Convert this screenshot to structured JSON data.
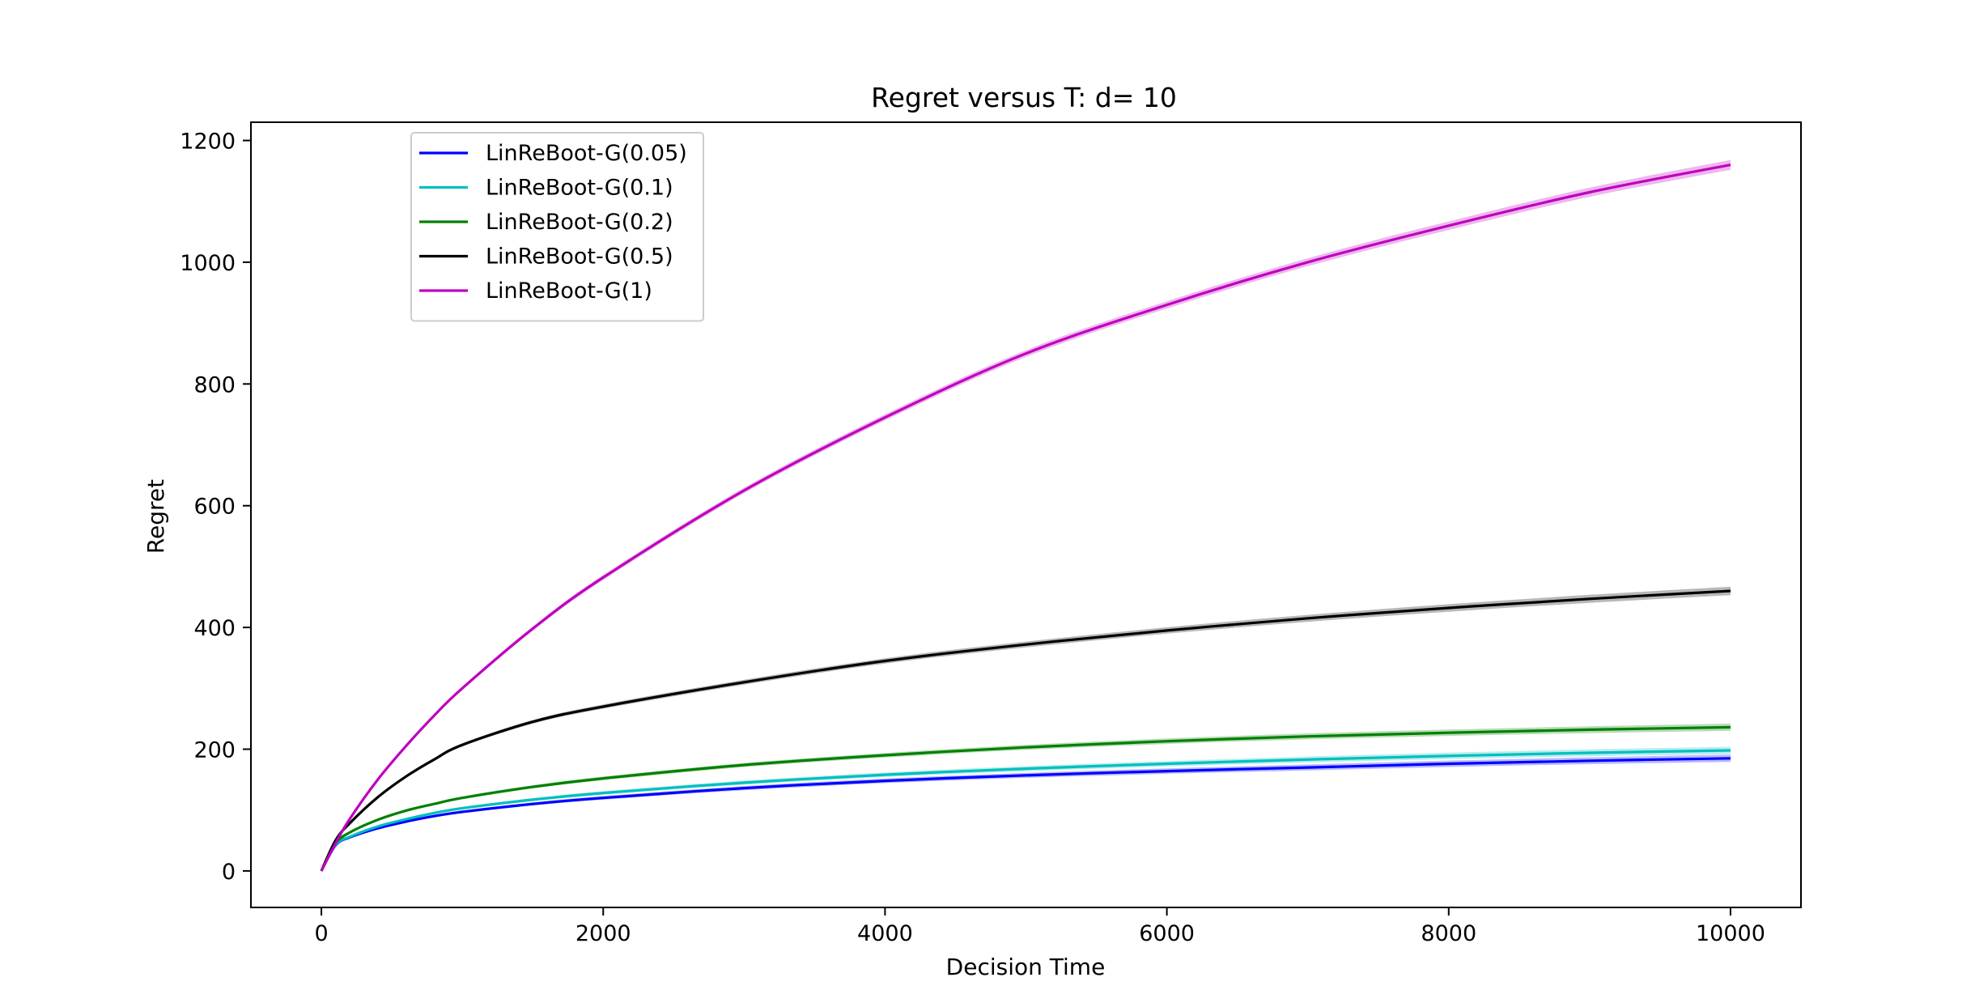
{
  "chart_data": {
    "type": "line",
    "title": "Regret versus T: d= 10",
    "xlabel": "Decision Time",
    "ylabel": "Regret",
    "xlim": [
      -500,
      10500
    ],
    "ylim": [
      -60,
      1230
    ],
    "xticks": [
      0,
      2000,
      4000,
      6000,
      8000,
      10000
    ],
    "xtick_labels": [
      "0",
      "2000",
      "4000",
      "6000",
      "8000",
      "10000"
    ],
    "yticks": [
      0,
      200,
      400,
      600,
      800,
      1000,
      1200
    ],
    "ytick_labels": [
      "0",
      "200",
      "400",
      "600",
      "800",
      "1000",
      "1200"
    ],
    "grid": false,
    "legend_position": "top-left",
    "x": [
      0,
      100,
      200,
      400,
      600,
      800,
      1000,
      1500,
      2000,
      3000,
      4000,
      5000,
      6000,
      7000,
      8000,
      9000,
      10000
    ],
    "series": [
      {
        "name": "LinReBoot-G(0.05)",
        "color": "#0000ff",
        "values": [
          0,
          42,
          55,
          70,
          81,
          90,
          97,
          110,
          120,
          136,
          148,
          157,
          164,
          170,
          176,
          181,
          185
        ],
        "band": 6
      },
      {
        "name": "LinReBoot-G(0.1)",
        "color": "#00bfbf",
        "values": [
          0,
          43,
          56,
          73,
          85,
          95,
          103,
          117,
          128,
          145,
          158,
          168,
          176,
          183,
          189,
          194,
          198
        ],
        "band": 6
      },
      {
        "name": "LinReBoot-G(0.2)",
        "color": "#008000",
        "values": [
          0,
          45,
          63,
          84,
          99,
          110,
          120,
          138,
          152,
          174,
          190,
          203,
          213,
          221,
          227,
          232,
          236
        ],
        "band": 6
      },
      {
        "name": "LinReBoot-G(0.5)",
        "color": "#000000",
        "values": [
          0,
          50,
          78,
          121,
          155,
          183,
          207,
          245,
          270,
          310,
          345,
          372,
          395,
          415,
          432,
          447,
          460
        ],
        "band": 7
      },
      {
        "name": "LinReBoot-G(1)",
        "color": "#bf00bf",
        "values": [
          0,
          45,
          85,
          150,
          205,
          255,
          300,
          398,
          482,
          625,
          745,
          850,
          930,
          1000,
          1060,
          1115,
          1160
        ],
        "band": 8
      }
    ]
  }
}
